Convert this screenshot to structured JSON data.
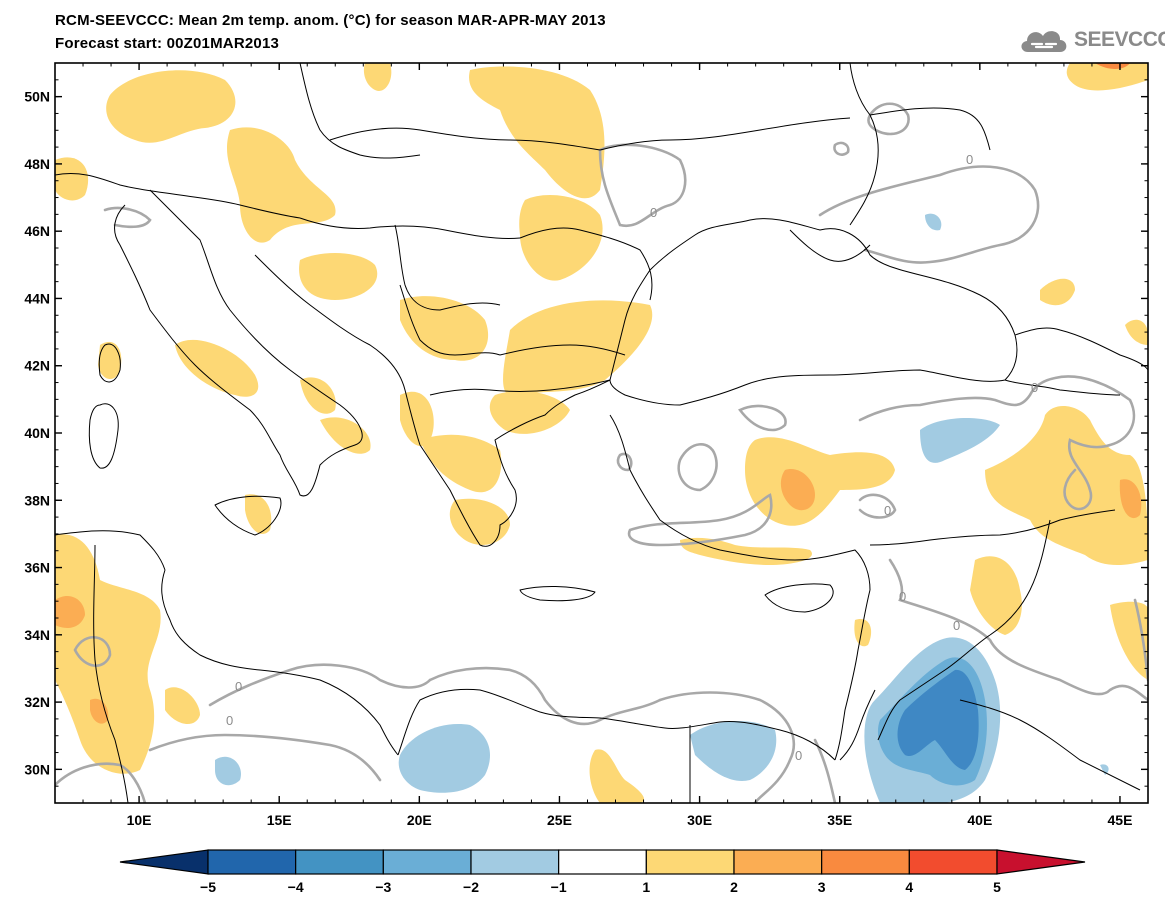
{
  "header": {
    "title_line1": "RCM-SEEVCCC: Mean 2m temp. anom. (°C) for season MAR-APR-MAY 2013",
    "title_line2": "Forecast start: 00Z01MAR2013"
  },
  "logo": {
    "text": "SEEVCCC",
    "icon": "cloud-icon"
  },
  "map": {
    "lon_range": [
      7,
      46
    ],
    "lat_range": [
      29,
      51
    ],
    "lon_ticks": [
      "10E",
      "15E",
      "20E",
      "25E",
      "30E",
      "35E",
      "40E",
      "45E"
    ],
    "lat_ticks": [
      "30N",
      "32N",
      "34N",
      "36N",
      "38N",
      "40N",
      "42N",
      "44N",
      "46N",
      "48N",
      "50N"
    ],
    "contour_labels": [
      "0",
      "0",
      "0",
      "0",
      "0",
      "0",
      "0",
      "0",
      "0"
    ],
    "colors": {
      "anom_pos_1_2": "#fdd875",
      "anom_pos_2_3": "#fbad53",
      "anom_pos_3_4": "#f98a3f",
      "anom_neg_1_2": "#a2cbe2",
      "anom_neg_2_3": "#6aaed6",
      "anom_neg_3_4": "#3f88c4",
      "zero_contour": "#a8a8a8",
      "borders": "#000000"
    }
  },
  "colorbar": {
    "labels": [
      "−5",
      "−4",
      "−3",
      "−2",
      "−1",
      "1",
      "2",
      "3",
      "4",
      "5"
    ],
    "colors": [
      "#08306b",
      "#2166ac",
      "#4393c3",
      "#6aaed6",
      "#a2cbe2",
      "#ffffff",
      "#fdd875",
      "#fbad53",
      "#f98a3f",
      "#f24c2e",
      "#c8102e"
    ]
  }
}
